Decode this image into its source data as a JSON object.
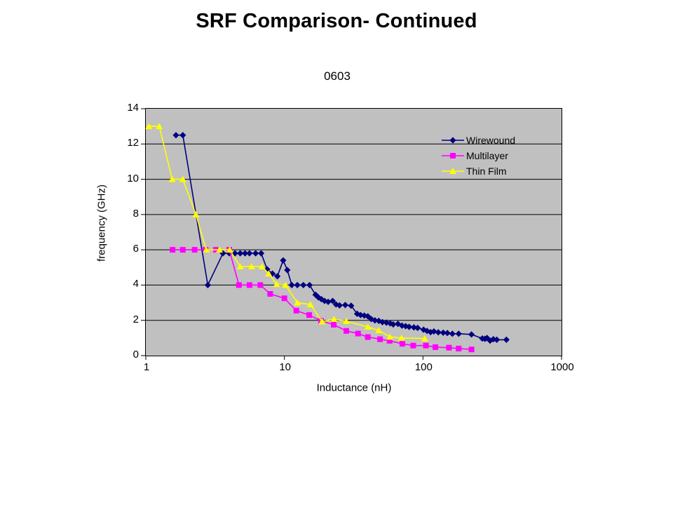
{
  "slide": {
    "title": "SRF Comparison- Continued"
  },
  "chart_data": {
    "type": "line",
    "title": "0603",
    "xlabel": "Inductance (nH)",
    "ylabel": "frequency (GHz)",
    "x_scale": "log",
    "xlim": [
      1,
      1000
    ],
    "ylim": [
      0,
      14
    ],
    "x_ticks": [
      1,
      10,
      100,
      1000
    ],
    "y_ticks": [
      0,
      2,
      4,
      6,
      8,
      10,
      12,
      14
    ],
    "grid": "horizontal",
    "plot_bg": "#c0c0c0",
    "grid_color": "#000000",
    "legend_position": "inside-top-right",
    "series": [
      {
        "name": "Wirewound",
        "color": "#000080",
        "marker": "diamond",
        "points": [
          [
            1.65,
            12.5
          ],
          [
            1.85,
            12.5
          ],
          [
            2.8,
            4.0
          ],
          [
            3.6,
            5.8
          ],
          [
            4.0,
            5.8
          ],
          [
            4.4,
            5.8
          ],
          [
            4.8,
            5.8
          ],
          [
            5.2,
            5.8
          ],
          [
            5.6,
            5.8
          ],
          [
            6.2,
            5.8
          ],
          [
            6.8,
            5.8
          ],
          [
            7.5,
            4.9
          ],
          [
            8.2,
            4.65
          ],
          [
            8.9,
            4.5
          ],
          [
            9.8,
            5.4
          ],
          [
            10.5,
            4.85
          ],
          [
            11.3,
            4.0
          ],
          [
            12.4,
            4.0
          ],
          [
            13.7,
            4.0
          ],
          [
            15.2,
            4.0
          ],
          [
            16.8,
            3.45
          ],
          [
            17.6,
            3.3
          ],
          [
            18.5,
            3.2
          ],
          [
            19.5,
            3.1
          ],
          [
            20.7,
            3.05
          ],
          [
            22.3,
            3.1
          ],
          [
            23.6,
            2.9
          ],
          [
            25,
            2.85
          ],
          [
            27.5,
            2.87
          ],
          [
            30.3,
            2.83
          ],
          [
            33.5,
            2.37
          ],
          [
            35.5,
            2.3
          ],
          [
            37.7,
            2.27
          ],
          [
            40,
            2.23
          ],
          [
            42.4,
            2.07
          ],
          [
            45,
            2.0
          ],
          [
            48,
            1.97
          ],
          [
            51,
            1.9
          ],
          [
            54.5,
            1.87
          ],
          [
            58,
            1.83
          ],
          [
            61,
            1.77
          ],
          [
            66,
            1.8
          ],
          [
            70.6,
            1.7
          ],
          [
            75,
            1.67
          ],
          [
            79.5,
            1.63
          ],
          [
            86,
            1.6
          ],
          [
            91.5,
            1.57
          ],
          [
            101,
            1.47
          ],
          [
            107,
            1.4
          ],
          [
            113.5,
            1.33
          ],
          [
            120,
            1.37
          ],
          [
            129,
            1.32
          ],
          [
            140,
            1.3
          ],
          [
            150,
            1.28
          ],
          [
            163,
            1.24
          ],
          [
            181,
            1.24
          ],
          [
            224,
            1.2
          ],
          [
            268,
            0.97
          ],
          [
            280,
            0.95
          ],
          [
            290,
            1.0
          ],
          [
            305,
            0.85
          ],
          [
            322,
            0.93
          ],
          [
            341,
            0.9
          ],
          [
            400,
            0.9
          ]
        ]
      },
      {
        "name": "Multilayer",
        "color": "#ff00ff",
        "marker": "square",
        "points": [
          [
            1.56,
            6.0
          ],
          [
            1.85,
            6.0
          ],
          [
            2.25,
            6.0
          ],
          [
            2.7,
            6.0
          ],
          [
            3.2,
            6.0
          ],
          [
            4.0,
            6.0
          ],
          [
            4.7,
            4.0
          ],
          [
            5.6,
            4.0
          ],
          [
            6.7,
            4.0
          ],
          [
            7.9,
            3.5
          ],
          [
            10,
            3.25
          ],
          [
            12.2,
            2.55
          ],
          [
            15.1,
            2.3
          ],
          [
            18.4,
            1.97
          ],
          [
            22.7,
            1.75
          ],
          [
            28,
            1.4
          ],
          [
            34,
            1.25
          ],
          [
            40,
            1.05
          ],
          [
            49,
            0.93
          ],
          [
            57.5,
            0.84
          ],
          [
            71,
            0.67
          ],
          [
            85,
            0.57
          ],
          [
            105,
            0.57
          ],
          [
            123,
            0.48
          ],
          [
            154,
            0.45
          ],
          [
            181,
            0.4
          ],
          [
            224,
            0.35
          ]
        ]
      },
      {
        "name": "Thin Film",
        "color": "#ffff00",
        "marker": "triangle",
        "points": [
          [
            1.05,
            13.0
          ],
          [
            1.25,
            13.0
          ],
          [
            1.55,
            10.0
          ],
          [
            1.85,
            10.0
          ],
          [
            2.3,
            8.0
          ],
          [
            2.73,
            6.0
          ],
          [
            3.4,
            6.0
          ],
          [
            4.03,
            6.0
          ],
          [
            4.8,
            5.05
          ],
          [
            5.8,
            5.05
          ],
          [
            6.9,
            5.05
          ],
          [
            7.7,
            4.65
          ],
          [
            8.8,
            4.05
          ],
          [
            10.2,
            4.0
          ],
          [
            12.4,
            3.0
          ],
          [
            15.4,
            2.9
          ],
          [
            18.7,
            1.93
          ],
          [
            22.8,
            2.07
          ],
          [
            28,
            1.95
          ],
          [
            40,
            1.63
          ],
          [
            48,
            1.43
          ],
          [
            57.6,
            1.06
          ],
          [
            70,
            1.0
          ],
          [
            103,
            0.97
          ]
        ]
      }
    ]
  }
}
